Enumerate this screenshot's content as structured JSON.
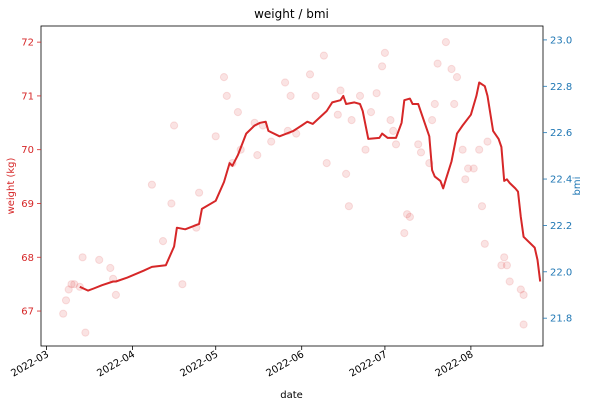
{
  "chart_data": {
    "type": "line",
    "title": "weight / bmi",
    "xlabel": "date",
    "ylabel_left": "weight (kg)",
    "ylabel_right": "bmi",
    "left_color": "#d62728",
    "right_color": "#1f77b4",
    "xlim": [
      "2022-02-27",
      "2022-08-27"
    ],
    "ylim_left": [
      66.35,
      72.3
    ],
    "ylim_right": [
      21.68,
      23.06
    ],
    "x_ticks": [
      {
        "date": "2022-03-01",
        "label": "2022-03"
      },
      {
        "date": "2022-04-01",
        "label": "2022-04"
      },
      {
        "date": "2022-05-01",
        "label": "2022-05"
      },
      {
        "date": "2022-06-01",
        "label": "2022-06"
      },
      {
        "date": "2022-07-01",
        "label": "2022-07"
      },
      {
        "date": "2022-08-01",
        "label": "2022-08"
      }
    ],
    "y_ticks_left": [
      "67",
      "68",
      "69",
      "70",
      "71",
      "72"
    ],
    "y_ticks_right": [
      "21.8",
      "22.0",
      "22.2",
      "22.4",
      "22.6",
      "22.8",
      "23.0"
    ],
    "series": [
      {
        "kind": "scatter",
        "axis": "left",
        "points": [
          [
            "2022-03-07",
            66.95
          ],
          [
            "2022-03-08",
            67.2
          ],
          [
            "2022-03-09",
            67.4
          ],
          [
            "2022-03-10",
            67.5
          ],
          [
            "2022-03-11",
            67.5
          ],
          [
            "2022-03-13",
            67.45
          ],
          [
            "2022-03-14",
            68.0
          ],
          [
            "2022-03-15",
            66.6
          ],
          [
            "2022-03-20",
            67.95
          ],
          [
            "2022-03-24",
            67.8
          ],
          [
            "2022-03-25",
            67.6
          ],
          [
            "2022-03-26",
            67.3
          ],
          [
            "2022-04-08",
            69.35
          ],
          [
            "2022-04-12",
            68.3
          ],
          [
            "2022-04-15",
            69.0
          ],
          [
            "2022-04-16",
            70.45
          ],
          [
            "2022-04-19",
            67.5
          ],
          [
            "2022-04-24",
            68.55
          ],
          [
            "2022-04-25",
            69.2
          ],
          [
            "2022-05-01",
            70.25
          ],
          [
            "2022-05-04",
            71.35
          ],
          [
            "2022-05-05",
            71.0
          ],
          [
            "2022-05-07",
            69.75
          ],
          [
            "2022-05-09",
            70.7
          ],
          [
            "2022-05-10",
            70.0
          ],
          [
            "2022-05-15",
            70.5
          ],
          [
            "2022-05-16",
            69.9
          ],
          [
            "2022-05-18",
            70.45
          ],
          [
            "2022-05-21",
            70.15
          ],
          [
            "2022-05-26",
            71.25
          ],
          [
            "2022-05-28",
            71.0
          ],
          [
            "2022-05-27",
            70.35
          ],
          [
            "2022-05-30",
            70.3
          ],
          [
            "2022-06-04",
            71.4
          ],
          [
            "2022-06-06",
            71.0
          ],
          [
            "2022-06-09",
            71.75
          ],
          [
            "2022-06-10",
            69.75
          ],
          [
            "2022-06-14",
            70.65
          ],
          [
            "2022-06-15",
            71.1
          ],
          [
            "2022-06-17",
            69.55
          ],
          [
            "2022-06-18",
            68.95
          ],
          [
            "2022-06-19",
            70.55
          ],
          [
            "2022-06-22",
            71.0
          ],
          [
            "2022-06-24",
            70.0
          ],
          [
            "2022-06-26",
            70.7
          ],
          [
            "2022-06-28",
            71.05
          ],
          [
            "2022-06-30",
            71.55
          ],
          [
            "2022-07-01",
            71.8
          ],
          [
            "2022-07-03",
            70.55
          ],
          [
            "2022-07-04",
            70.35
          ],
          [
            "2022-07-05",
            70.1
          ],
          [
            "2022-07-08",
            68.45
          ],
          [
            "2022-07-09",
            68.8
          ],
          [
            "2022-07-10",
            68.75
          ],
          [
            "2022-07-13",
            70.1
          ],
          [
            "2022-07-14",
            69.95
          ],
          [
            "2022-07-17",
            69.75
          ],
          [
            "2022-07-18",
            70.55
          ],
          [
            "2022-07-19",
            70.85
          ],
          [
            "2022-07-20",
            71.6
          ],
          [
            "2022-07-23",
            72.0
          ],
          [
            "2022-07-25",
            71.5
          ],
          [
            "2022-07-26",
            70.85
          ],
          [
            "2022-07-27",
            71.35
          ],
          [
            "2022-07-29",
            70.0
          ],
          [
            "2022-07-30",
            69.45
          ],
          [
            "2022-07-31",
            69.65
          ],
          [
            "2022-08-02",
            69.65
          ],
          [
            "2022-08-04",
            70.0
          ],
          [
            "2022-08-05",
            68.95
          ],
          [
            "2022-08-06",
            68.25
          ],
          [
            "2022-08-07",
            70.15
          ],
          [
            "2022-08-12",
            67.85
          ],
          [
            "2022-08-13",
            68.0
          ],
          [
            "2022-08-14",
            67.85
          ],
          [
            "2022-08-15",
            67.55
          ],
          [
            "2022-08-19",
            67.4
          ],
          [
            "2022-08-20",
            66.75
          ],
          [
            "2022-08-20",
            67.3
          ]
        ]
      },
      {
        "kind": "line",
        "axis": "left",
        "points": [
          [
            "2022-03-13",
            67.45
          ],
          [
            "2022-03-16",
            67.38
          ],
          [
            "2022-03-18",
            67.42
          ],
          [
            "2022-03-21",
            67.48
          ],
          [
            "2022-03-25",
            67.55
          ],
          [
            "2022-03-26",
            67.55
          ],
          [
            "2022-03-30",
            67.62
          ],
          [
            "2022-04-05",
            67.75
          ],
          [
            "2022-04-08",
            67.82
          ],
          [
            "2022-04-13",
            67.85
          ],
          [
            "2022-04-16",
            68.2
          ],
          [
            "2022-04-17",
            68.55
          ],
          [
            "2022-04-20",
            68.52
          ],
          [
            "2022-04-25",
            68.62
          ],
          [
            "2022-04-26",
            68.9
          ],
          [
            "2022-05-01",
            69.05
          ],
          [
            "2022-05-04",
            69.4
          ],
          [
            "2022-05-06",
            69.75
          ],
          [
            "2022-05-07",
            69.7
          ],
          [
            "2022-05-09",
            69.9
          ],
          [
            "2022-05-12",
            70.3
          ],
          [
            "2022-05-15",
            70.45
          ],
          [
            "2022-05-17",
            70.5
          ],
          [
            "2022-05-19",
            70.52
          ],
          [
            "2022-05-20",
            70.35
          ],
          [
            "2022-05-24",
            70.25
          ],
          [
            "2022-05-29",
            70.35
          ],
          [
            "2022-06-01",
            70.45
          ],
          [
            "2022-06-03",
            70.52
          ],
          [
            "2022-06-05",
            70.48
          ],
          [
            "2022-06-10",
            70.72
          ],
          [
            "2022-06-12",
            70.88
          ],
          [
            "2022-06-15",
            70.92
          ],
          [
            "2022-06-16",
            71.0
          ],
          [
            "2022-06-17",
            70.85
          ],
          [
            "2022-06-20",
            70.88
          ],
          [
            "2022-06-22",
            70.85
          ],
          [
            "2022-06-23",
            70.72
          ],
          [
            "2022-06-25",
            70.2
          ],
          [
            "2022-06-29",
            70.22
          ],
          [
            "2022-06-30",
            70.3
          ],
          [
            "2022-07-02",
            70.22
          ],
          [
            "2022-07-05",
            70.22
          ],
          [
            "2022-07-07",
            70.5
          ],
          [
            "2022-07-08",
            70.92
          ],
          [
            "2022-07-10",
            70.95
          ],
          [
            "2022-07-11",
            70.85
          ],
          [
            "2022-07-13",
            70.85
          ],
          [
            "2022-07-15",
            70.55
          ],
          [
            "2022-07-17",
            70.25
          ],
          [
            "2022-07-18",
            69.62
          ],
          [
            "2022-07-19",
            69.5
          ],
          [
            "2022-07-21",
            69.42
          ],
          [
            "2022-07-22",
            69.28
          ],
          [
            "2022-07-23",
            69.45
          ],
          [
            "2022-07-25",
            69.78
          ],
          [
            "2022-07-27",
            70.3
          ],
          [
            "2022-07-29",
            70.45
          ],
          [
            "2022-08-01",
            70.65
          ],
          [
            "2022-08-03",
            71.0
          ],
          [
            "2022-08-04",
            71.25
          ],
          [
            "2022-08-06",
            71.18
          ],
          [
            "2022-08-07",
            71.0
          ],
          [
            "2022-08-09",
            70.35
          ],
          [
            "2022-08-11",
            70.2
          ],
          [
            "2022-08-12",
            70.05
          ],
          [
            "2022-08-13",
            69.42
          ],
          [
            "2022-08-14",
            69.45
          ],
          [
            "2022-08-15",
            69.38
          ],
          [
            "2022-08-17",
            69.28
          ],
          [
            "2022-08-18",
            69.22
          ],
          [
            "2022-08-19",
            68.75
          ],
          [
            "2022-08-20",
            68.38
          ],
          [
            "2022-08-24",
            68.18
          ],
          [
            "2022-08-25",
            67.95
          ],
          [
            "2022-08-26",
            67.55
          ]
        ]
      }
    ],
    "grid": false,
    "legend": "none"
  }
}
